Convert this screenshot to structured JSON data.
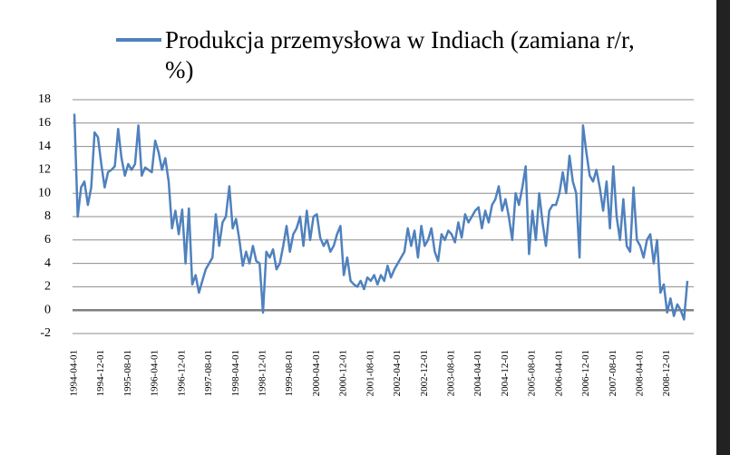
{
  "chart_data": {
    "type": "line",
    "categories": [
      "1994-04-01",
      null,
      null,
      null,
      null,
      null,
      null,
      null,
      "1994-12-01",
      null,
      null,
      null,
      null,
      null,
      null,
      null,
      "1995-08-01",
      null,
      null,
      null,
      null,
      null,
      null,
      null,
      "1996-04-01",
      null,
      null,
      null,
      null,
      null,
      null,
      null,
      "1996-12-01",
      null,
      null,
      null,
      null,
      null,
      null,
      null,
      "1997-08-01",
      null,
      null,
      null,
      null,
      null,
      null,
      null,
      "1998-04-01",
      null,
      null,
      null,
      null,
      null,
      null,
      null,
      "1998-12-01",
      null,
      null,
      null,
      null,
      null,
      null,
      null,
      "1999-08-01",
      null,
      null,
      null,
      null,
      null,
      null,
      null,
      "2000-04-01",
      null,
      null,
      null,
      null,
      null,
      null,
      null,
      "2000-12-01",
      null,
      null,
      null,
      null,
      null,
      null,
      null,
      "2001-08-01",
      null,
      null,
      null,
      null,
      null,
      null,
      null,
      "2002-04-01",
      null,
      null,
      null,
      null,
      null,
      null,
      null,
      "2002-12-01",
      null,
      null,
      null,
      null,
      null,
      null,
      null,
      "2003-08-01",
      null,
      null,
      null,
      null,
      null,
      null,
      null,
      "2004-04-01",
      null,
      null,
      null,
      null,
      null,
      null,
      null,
      "2004-12-01",
      null,
      null,
      null,
      null,
      null,
      null,
      null,
      "2005-08-01",
      null,
      null,
      null,
      null,
      null,
      null,
      null,
      "2006-04-01",
      null,
      null,
      null,
      null,
      null,
      null,
      null,
      "2006-12-01",
      null,
      null,
      null,
      null,
      null,
      null,
      null,
      "2007-08-01",
      null,
      null,
      null,
      null,
      null,
      null,
      null,
      "2008-04-01",
      null,
      null,
      null,
      null,
      null,
      null,
      null,
      "2008-12-01",
      null,
      null,
      null,
      null,
      null,
      null
    ],
    "series": [
      {
        "name": "Produkcja przemysłowa w Indiach (zamiana r/r, %)",
        "color": "#4f81bd",
        "values": [
          16.8,
          8.0,
          10.5,
          11.0,
          9.0,
          10.5,
          15.2,
          14.8,
          12.5,
          10.5,
          11.8,
          12.0,
          12.3,
          15.5,
          13.0,
          11.5,
          12.5,
          12.0,
          12.5,
          15.8,
          11.5,
          12.2,
          12.0,
          11.8,
          14.5,
          13.5,
          12.0,
          13.0,
          11.0,
          7.0,
          8.5,
          6.5,
          8.6,
          4.0,
          8.7,
          2.2,
          3.0,
          1.5,
          2.5,
          3.5,
          4.0,
          4.5,
          8.2,
          5.5,
          7.5,
          8.0,
          10.6,
          7.0,
          7.8,
          6.0,
          3.8,
          5.0,
          4.0,
          5.5,
          4.2,
          4.0,
          -0.2,
          5.0,
          4.5,
          5.2,
          3.5,
          4.0,
          5.5,
          7.2,
          5.0,
          6.5,
          7.0,
          8.0,
          5.5,
          8.5,
          6.0,
          8.0,
          8.2,
          6.2,
          5.5,
          6.0,
          5.0,
          5.5,
          6.5,
          7.2,
          3.0,
          4.5,
          2.5,
          2.2,
          2.0,
          2.5,
          1.8,
          2.8,
          2.5,
          3.0,
          2.2,
          3.0,
          2.5,
          3.8,
          2.8,
          3.5,
          4.0,
          4.5,
          5.0,
          7.0,
          5.5,
          6.8,
          4.5,
          7.2,
          5.5,
          6.0,
          7.0,
          5.0,
          4.2,
          6.5,
          6.0,
          6.8,
          6.5,
          5.8,
          7.5,
          6.2,
          8.2,
          7.5,
          8.0,
          8.5,
          8.8,
          7.0,
          8.5,
          7.5,
          9.0,
          9.5,
          10.6,
          8.5,
          9.5,
          8.0,
          6.0,
          10.0,
          9.0,
          10.5,
          12.3,
          4.8,
          8.5,
          6.0,
          10.0,
          7.5,
          5.5,
          8.5,
          9.0,
          9.0,
          10.0,
          11.8,
          10.0,
          13.2,
          11.0,
          10.0,
          4.5,
          15.8,
          13.5,
          11.5,
          11.0,
          12.0,
          10.5,
          8.5,
          11.0,
          7.0,
          12.3,
          8.0,
          6.0,
          9.5,
          5.5,
          5.0,
          10.5,
          6.0,
          5.5,
          4.5,
          6.0,
          6.5,
          4.0,
          6.0,
          1.5,
          2.2,
          -0.2,
          1.0,
          -0.5,
          0.5,
          0.0,
          -0.8,
          2.5
        ]
      }
    ],
    "ylim": [
      -2,
      18
    ],
    "yticks": [
      -2,
      0,
      2,
      4,
      6,
      8,
      10,
      12,
      14,
      16,
      18
    ],
    "grid": true
  }
}
